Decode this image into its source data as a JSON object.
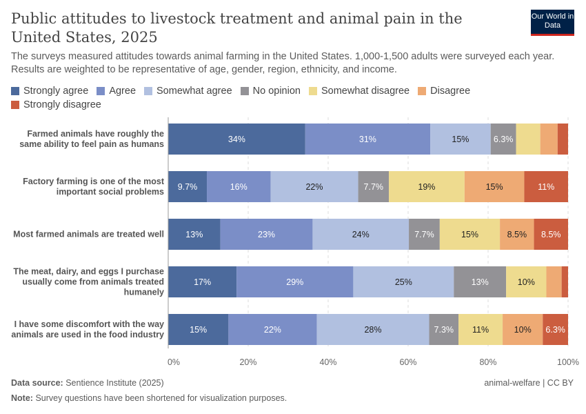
{
  "header": {
    "title": "Public attitudes to livestock treatment and animal pain in the United States, 2025",
    "subtitle": "The surveys measured attitudes towards animal farming in the United States. 1,000-1,500 adults were surveyed each year. Results are weighted to be representative of age, gender, region, ethnicity, and income.",
    "logo": "Our World in Data"
  },
  "chart_data": {
    "type": "bar",
    "orientation": "horizontal-stacked",
    "xlim": [
      0,
      100
    ],
    "x_ticks": [
      "0%",
      "20%",
      "40%",
      "60%",
      "80%",
      "100%"
    ],
    "categories": [
      "Farmed animals have roughly the same ability to feel pain as humans",
      "Factory farming is one of the most important social problems",
      "Most farmed animals are treated well",
      "The meat, dairy, and eggs I purchase usually come from animals treated humanely",
      "I have some discomfort with the way animals are used in the food industry"
    ],
    "series": [
      {
        "name": "Strongly agree",
        "color": "#4c6a9c",
        "values": [
          34,
          9.7,
          13,
          17,
          15
        ]
      },
      {
        "name": "Agree",
        "color": "#7b8ec7",
        "values": [
          31,
          16,
          23,
          29,
          22
        ]
      },
      {
        "name": "Somewhat agree",
        "color": "#b1c0e0",
        "values": [
          15,
          22,
          24,
          25,
          28
        ]
      },
      {
        "name": "No opinion",
        "color": "#939296",
        "values": [
          6.3,
          7.7,
          7.7,
          13,
          7.3
        ]
      },
      {
        "name": "Somewhat disagree",
        "color": "#eedb8f",
        "values": [
          6,
          19,
          15,
          10,
          11
        ]
      },
      {
        "name": "Disagree",
        "color": "#eeaa74",
        "values": [
          4.3,
          15,
          8.5,
          3.8,
          10
        ]
      },
      {
        "name": "Strongly disagree",
        "color": "#cb5d3f",
        "values": [
          2.6,
          11,
          8.5,
          1.6,
          6.3
        ]
      }
    ],
    "data_labels": [
      [
        "34%",
        "31%",
        "15%",
        "6.3%",
        "",
        "",
        ""
      ],
      [
        "9.7%",
        "16%",
        "22%",
        "7.7%",
        "19%",
        "15%",
        "11%"
      ],
      [
        "13%",
        "23%",
        "24%",
        "7.7%",
        "15%",
        "8.5%",
        "8.5%"
      ],
      [
        "17%",
        "29%",
        "25%",
        "13%",
        "10%",
        "",
        ""
      ],
      [
        "15%",
        "22%",
        "28%",
        "7.3%",
        "11%",
        "10%",
        "6.3%"
      ]
    ],
    "legend_position": "top",
    "grid": true
  },
  "footer": {
    "source_label": "Data source:",
    "source": "Sentience Institute (2025)",
    "note_label": "Note:",
    "note": "Survey questions have been shortened for visualization purposes.",
    "license": "animal-welfare | CC BY"
  }
}
